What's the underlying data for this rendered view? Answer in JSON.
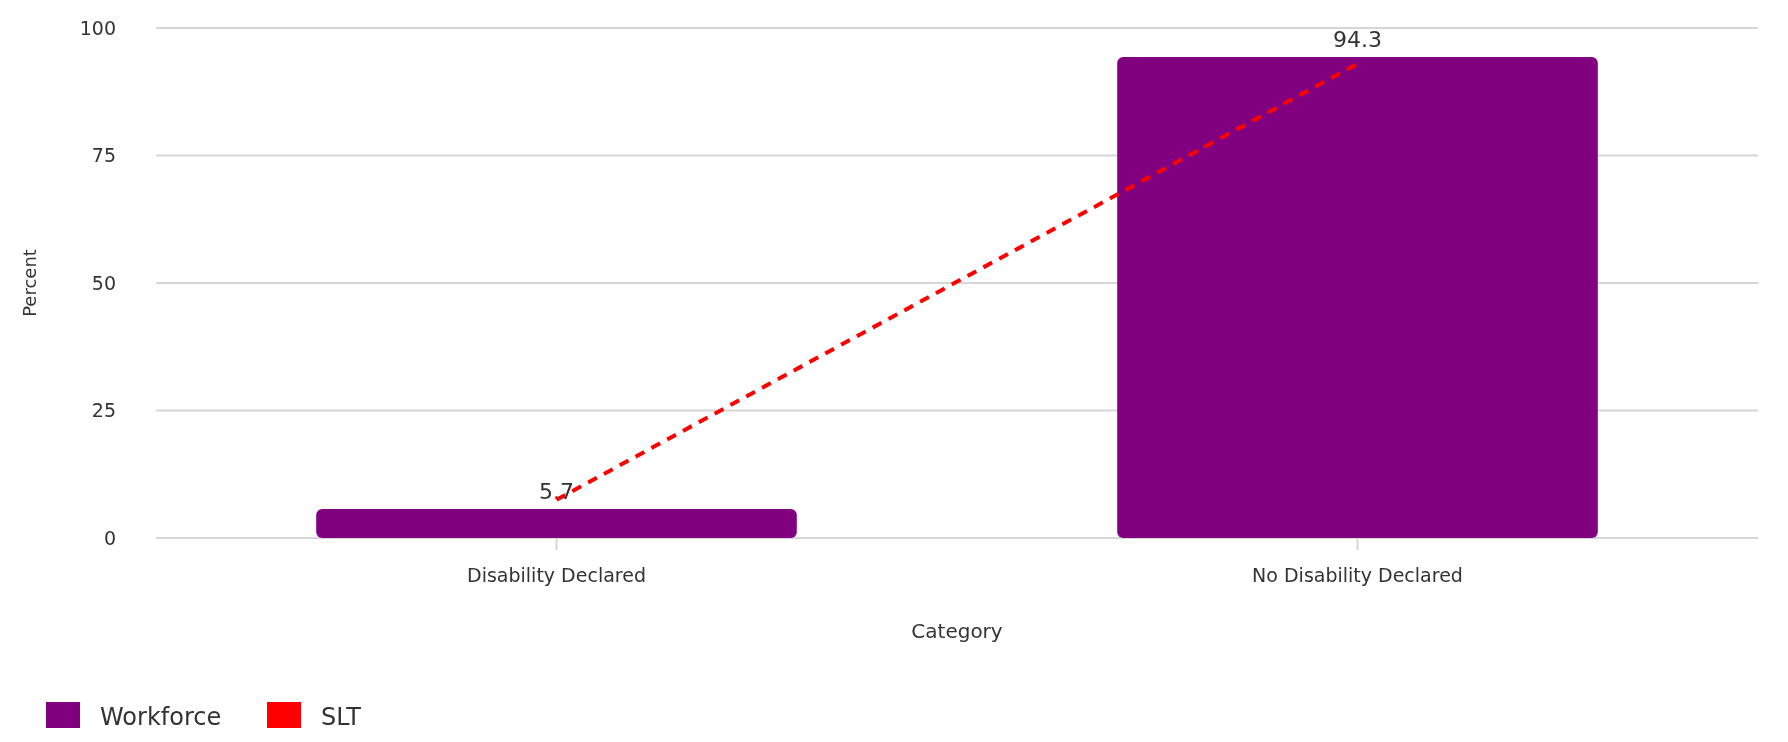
{
  "chart_data": {
    "type": "bar",
    "xlabel": "Category",
    "ylabel": "Percent",
    "categories": [
      "Disability Declared",
      "No Disability Declared"
    ],
    "series": [
      {
        "name": "Workforce",
        "color": "#800080",
        "values": [
          5.7,
          94.3
        ],
        "value_labels": [
          "5.7",
          "94.3"
        ]
      },
      {
        "name": "SLT",
        "type": "line",
        "color": "#ff0000",
        "values": [
          7.5,
          93
        ],
        "line_style": "dashed",
        "marker": "none"
      }
    ],
    "ylim": [
      0,
      100
    ],
    "yticks": [
      0,
      25,
      50,
      75,
      100
    ],
    "grid": "y",
    "legend": "bottom left"
  }
}
